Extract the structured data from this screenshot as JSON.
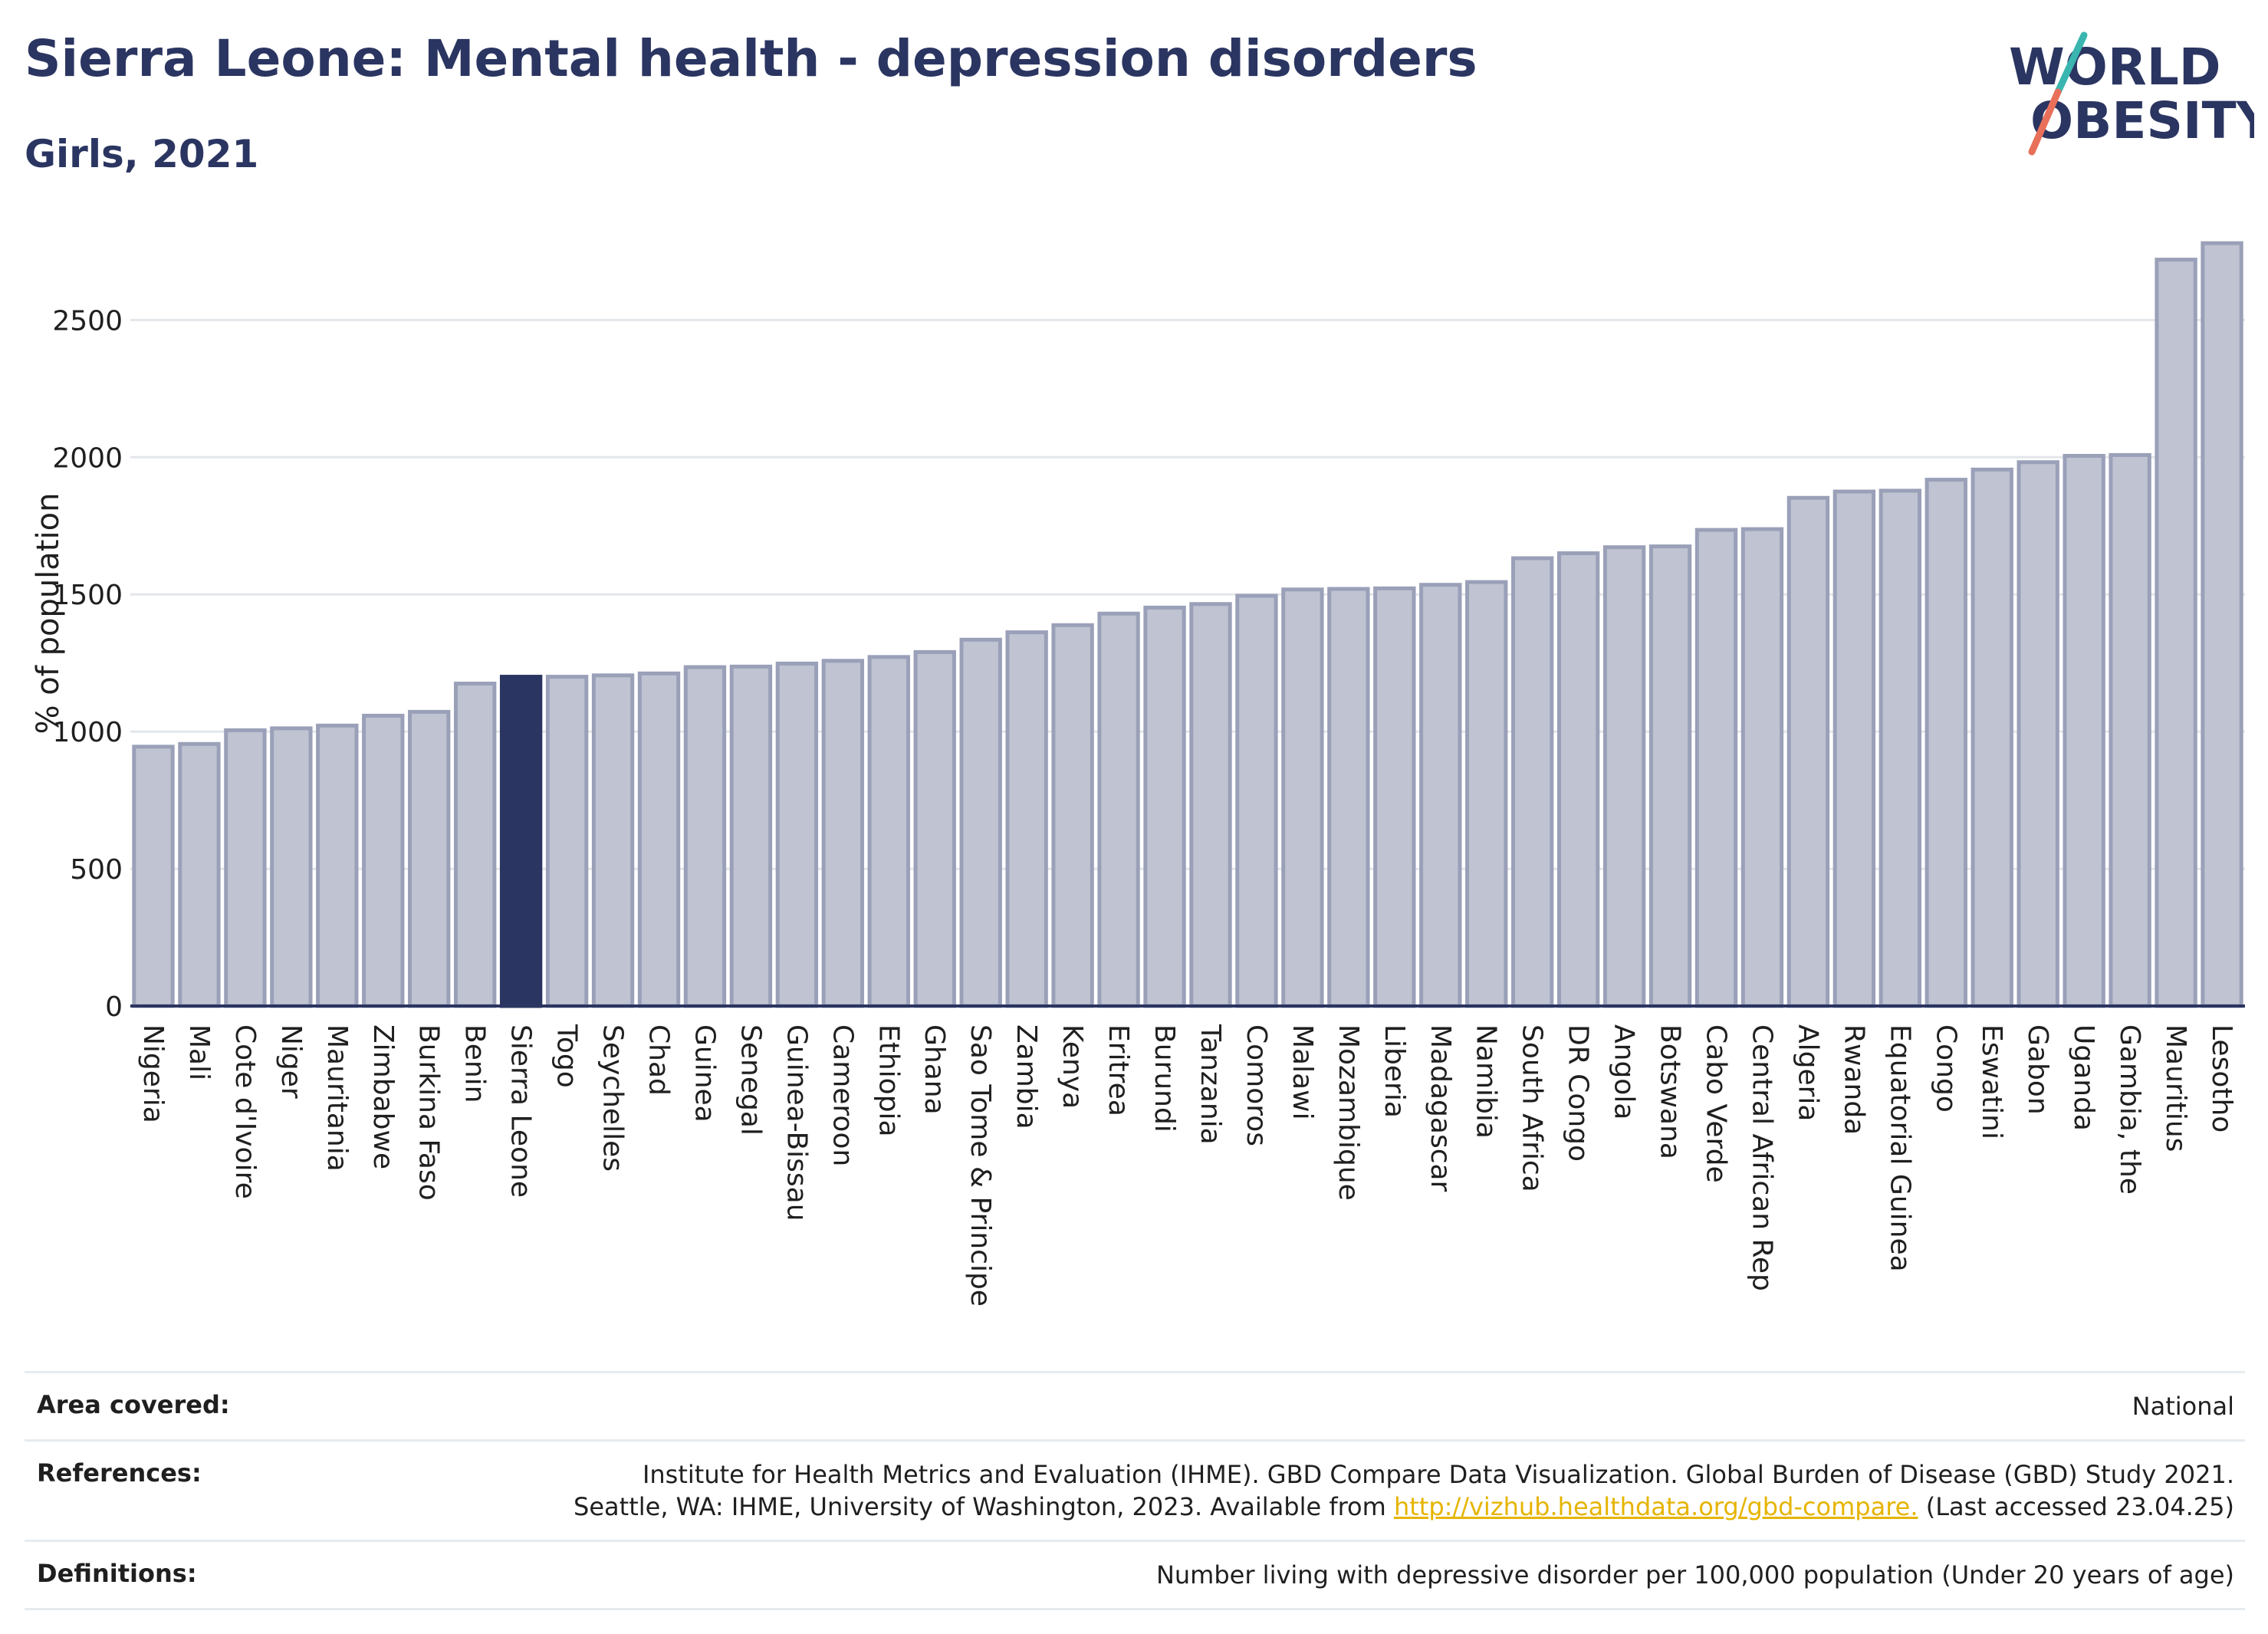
{
  "title": "Sierra Leone: Mental health - depression disorders",
  "subtitle": "Girls, 2021",
  "logo": {
    "line1": "WORLD",
    "line2": "OBESITY",
    "color": "#2b3561",
    "accent_teal": "#3ab5b0",
    "accent_red": "#e8705a"
  },
  "colors": {
    "bar": "#bfc3d2",
    "bar_edge": "#9aa0b8",
    "highlight": "#2b3561",
    "grid": "#e3e6ea",
    "axis": "#2b3561"
  },
  "chart_data": {
    "type": "bar",
    "ylabel": "% of population",
    "ylim": [
      0,
      2800
    ],
    "yticks": [
      0,
      500,
      1000,
      1500,
      2000,
      2500
    ],
    "grid": true,
    "highlight": "Sierra Leone",
    "categories": [
      "Nigeria",
      "Mali",
      "Cote d'Ivoire",
      "Niger",
      "Mauritania",
      "Zimbabwe",
      "Burkina Faso",
      "Benin",
      "Sierra Leone",
      "Togo",
      "Seychelles",
      "Chad",
      "Guinea",
      "Senegal",
      "Guinea-Bissau",
      "Cameroon",
      "Ethiopia",
      "Ghana",
      "Sao Tome & Principe",
      "Zambia",
      "Kenya",
      "Eritrea",
      "Burundi",
      "Tanzania",
      "Comoros",
      "Malawi",
      "Mozambique",
      "Liberia",
      "Madagascar",
      "Namibia",
      "South Africa",
      "DR Congo",
      "Angola",
      "Botswana",
      "Cabo Verde",
      "Central African Rep",
      "Algeria",
      "Rwanda",
      "Equatorial Guinea",
      "Congo",
      "Eswatini",
      "Gabon",
      "Uganda",
      "Gambia, the",
      "Mauritius",
      "Lesotho"
    ],
    "values": [
      945,
      955,
      1005,
      1012,
      1022,
      1058,
      1072,
      1175,
      1200,
      1200,
      1205,
      1212,
      1235,
      1237,
      1248,
      1258,
      1272,
      1290,
      1335,
      1362,
      1388,
      1430,
      1452,
      1465,
      1495,
      1518,
      1520,
      1522,
      1535,
      1545,
      1632,
      1650,
      1672,
      1675,
      1735,
      1738,
      1852,
      1875,
      1878,
      1918,
      1955,
      1982,
      2005,
      2008,
      2720,
      2780
    ]
  },
  "footer": {
    "area_label": "Area covered:",
    "area_value": "National",
    "references_label": "References:",
    "references_line1": "Institute for Health Metrics and Evaluation (IHME). GBD Compare Data Visualization. Global Burden of Disease (GBD) Study 2021.",
    "references_line2_pre": "Seattle, WA: IHME, University of Washington, 2023. Available from",
    "references_link": "http://vizhub.healthdata.org/gbd-compare.",
    "references_line2_post": "(Last accessed 23.04.25)",
    "definitions_label": "Definitions:",
    "definitions_value": "Number living with depressive disorder per 100,000 population (Under 20 years of age)"
  }
}
